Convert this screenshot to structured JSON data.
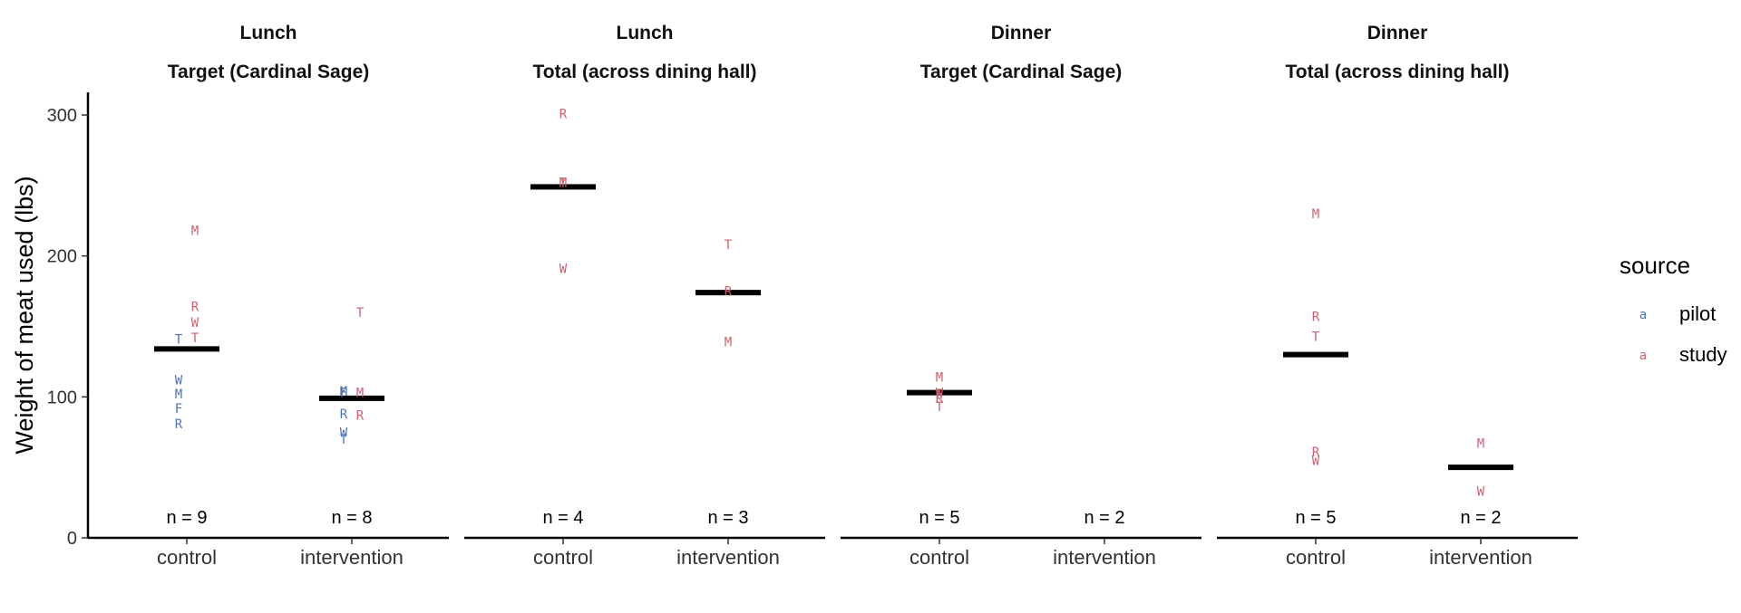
{
  "chart_data": {
    "type": "scatter",
    "ylabel": "Weight of meat used (lbs)",
    "xlabel": "",
    "ylim": [
      0,
      315
    ],
    "yticks": [
      0,
      100,
      200,
      300
    ],
    "categories": [
      "control",
      "intervention"
    ],
    "legend": {
      "title": "source",
      "position": "right",
      "key_glyph": "a",
      "entries": [
        {
          "name": "pilot",
          "color": "#4a74b4"
        },
        {
          "name": "study",
          "color": "#d05f6e"
        }
      ]
    },
    "panels": [
      {
        "strip_top": "Lunch",
        "strip_bottom": "Target (Cardinal Sage)",
        "groups": [
          {
            "category": "control",
            "n_label": "n = 9",
            "mean": 134,
            "points": [
              {
                "label": "M",
                "y": 218,
                "source": "study"
              },
              {
                "label": "R",
                "y": 164,
                "source": "study"
              },
              {
                "label": "W",
                "y": 153,
                "source": "study"
              },
              {
                "label": "T",
                "y": 142,
                "source": "study"
              },
              {
                "label": "T",
                "y": 141,
                "source": "pilot"
              },
              {
                "label": "W",
                "y": 112,
                "source": "pilot"
              },
              {
                "label": "M",
                "y": 102,
                "source": "pilot"
              },
              {
                "label": "F",
                "y": 92,
                "source": "pilot"
              },
              {
                "label": "R",
                "y": 81,
                "source": "pilot"
              }
            ]
          },
          {
            "category": "intervention",
            "n_label": "n = 8",
            "mean": 99,
            "points": [
              {
                "label": "T",
                "y": 160,
                "source": "study"
              },
              {
                "label": "M",
                "y": 103,
                "source": "study"
              },
              {
                "label": "R",
                "y": 87,
                "source": "study"
              },
              {
                "label": "M",
                "y": 104,
                "source": "pilot"
              },
              {
                "label": "F",
                "y": 103,
                "source": "pilot"
              },
              {
                "label": "R",
                "y": 88,
                "source": "pilot"
              },
              {
                "label": "W",
                "y": 75,
                "source": "pilot"
              },
              {
                "label": "T",
                "y": 70,
                "source": "pilot"
              }
            ]
          }
        ]
      },
      {
        "strip_top": "Lunch",
        "strip_bottom": "Total (across dining hall)",
        "groups": [
          {
            "category": "control",
            "n_label": "n = 4",
            "mean": 249,
            "points": [
              {
                "label": "R",
                "y": 301,
                "source": "study"
              },
              {
                "label": "M",
                "y": 252,
                "source": "study"
              },
              {
                "label": "T",
                "y": 252,
                "source": "study"
              },
              {
                "label": "W",
                "y": 191,
                "source": "study"
              }
            ]
          },
          {
            "category": "intervention",
            "n_label": "n = 3",
            "mean": 174,
            "points": [
              {
                "label": "T",
                "y": 208,
                "source": "study"
              },
              {
                "label": "R",
                "y": 175,
                "source": "study"
              },
              {
                "label": "M",
                "y": 139,
                "source": "study"
              }
            ]
          }
        ]
      },
      {
        "strip_top": "Dinner",
        "strip_bottom": "Target (Cardinal Sage)",
        "groups": [
          {
            "category": "control",
            "n_label": "n = 5",
            "mean": 103,
            "points": [
              {
                "label": "M",
                "y": 114,
                "source": "study"
              },
              {
                "label": "W",
                "y": 103,
                "source": "study"
              },
              {
                "label": "F",
                "y": 102,
                "source": "study"
              },
              {
                "label": "R",
                "y": 99,
                "source": "study"
              },
              {
                "label": "T",
                "y": 93,
                "source": "study"
              }
            ]
          },
          {
            "category": "intervention",
            "n_label": "n = 2",
            "mean": null,
            "points": []
          }
        ]
      },
      {
        "strip_top": "Dinner",
        "strip_bottom": "Total (across dining hall)",
        "groups": [
          {
            "category": "control",
            "n_label": "n = 5",
            "mean": 130,
            "points": [
              {
                "label": "M",
                "y": 230,
                "source": "study"
              },
              {
                "label": "R",
                "y": 157,
                "source": "study"
              },
              {
                "label": "T",
                "y": 143,
                "source": "study"
              },
              {
                "label": "R",
                "y": 61,
                "source": "study"
              },
              {
                "label": "W",
                "y": 55,
                "source": "study"
              }
            ]
          },
          {
            "category": "intervention",
            "n_label": "n = 2",
            "mean": 50,
            "points": [
              {
                "label": "M",
                "y": 67,
                "source": "study"
              },
              {
                "label": "W",
                "y": 33,
                "source": "study"
              }
            ]
          }
        ]
      }
    ]
  }
}
